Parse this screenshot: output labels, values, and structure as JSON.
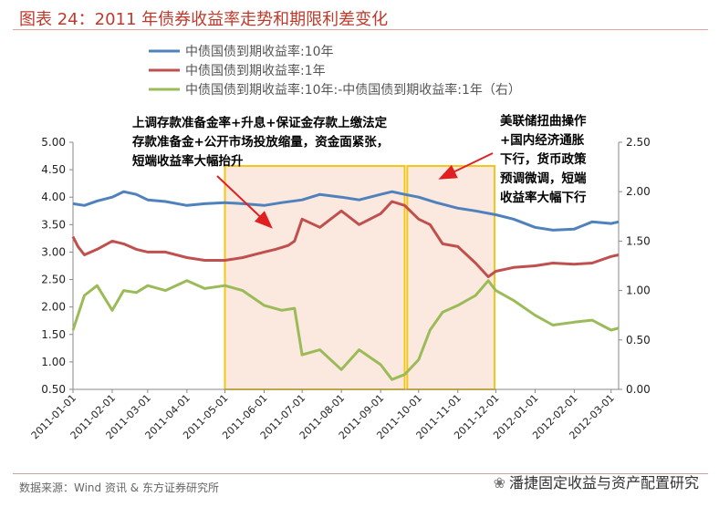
{
  "title": "图表 24：2011 年债券收益率走势和期限利差变化",
  "source": "数据来源：Wind 资讯 & 东方证券研究所",
  "brand": "潘捷固定收益与资产配置研究",
  "colors": {
    "accent": "#c0392b",
    "s10y": "#4f81bd",
    "s1y": "#c0504d",
    "spread": "#9bbb59",
    "box": "#f5c518",
    "box_fill": "#fbe9e0"
  },
  "annotations": [
    "上调存款准备金率+升息+保证金存款上缴法定",
    "存款准备金+公开市场投放缩量，资金面紧张，",
    "短端收益率大幅抬升",
    "美联储扭曲操作",
    "+国内经济通胀",
    "下行，货币政策",
    "预调微调，短端",
    "收益率大幅下行"
  ],
  "chart_data": {
    "type": "line",
    "title": "图表 24：2011 年债券收益率走势和期限利差变化",
    "x_ticks": [
      "2011-01-01",
      "2011-02-01",
      "2011-03-01",
      "2011-04-01",
      "2011-05-01",
      "2011-06-01",
      "2011-07-01",
      "2011-08-01",
      "2011-09-01",
      "2011-10-01",
      "2011-11-01",
      "2011-12-01",
      "2012-01-01",
      "2012-02-01",
      "2012-03-01"
    ],
    "y_left_ticks": [
      "5.00",
      "4.50",
      "4.00",
      "3.50",
      "3.00",
      "2.50",
      "2.00",
      "1.50",
      "1.00",
      "0.50"
    ],
    "y_right_ticks": [
      "2.50",
      "2.00",
      "1.50",
      "1.00",
      "0.50",
      "0.00"
    ],
    "ylim_left": [
      0.5,
      5.0
    ],
    "ylim_right": [
      0.0,
      2.5
    ],
    "legend_position": "top",
    "grid": false,
    "highlight_ranges": [
      [
        "2011-05-01",
        "2011-09-20"
      ],
      [
        "2011-09-22",
        "2011-11-30"
      ]
    ],
    "series": [
      {
        "name": "中债国债到期收益率:10年",
        "axis": "left",
        "x": [
          "2011-01-01",
          "2011-01-10",
          "2011-01-20",
          "2011-02-01",
          "2011-02-10",
          "2011-02-20",
          "2011-03-01",
          "2011-03-15",
          "2011-04-01",
          "2011-04-15",
          "2011-05-01",
          "2011-05-15",
          "2011-06-01",
          "2011-06-15",
          "2011-07-01",
          "2011-07-15",
          "2011-08-01",
          "2011-08-15",
          "2011-09-01",
          "2011-09-10",
          "2011-09-20",
          "2011-10-01",
          "2011-10-15",
          "2011-11-01",
          "2011-11-15",
          "2011-12-01",
          "2011-12-15",
          "2012-01-01",
          "2012-01-15",
          "2012-02-01",
          "2012-02-15",
          "2012-03-01",
          "2012-03-07"
        ],
        "values": [
          3.88,
          3.85,
          3.93,
          4.0,
          4.1,
          4.05,
          3.95,
          3.92,
          3.85,
          3.88,
          3.9,
          3.88,
          3.85,
          3.9,
          3.95,
          4.05,
          4.0,
          3.95,
          4.05,
          4.1,
          4.05,
          4.0,
          3.9,
          3.8,
          3.75,
          3.68,
          3.6,
          3.45,
          3.4,
          3.42,
          3.55,
          3.52,
          3.55
        ]
      },
      {
        "name": "中债国债到期收益率:1年",
        "axis": "left",
        "x": [
          "2011-01-01",
          "2011-01-05",
          "2011-01-10",
          "2011-01-20",
          "2011-02-01",
          "2011-02-10",
          "2011-02-20",
          "2011-03-01",
          "2011-03-15",
          "2011-04-01",
          "2011-04-15",
          "2011-05-01",
          "2011-05-15",
          "2011-06-01",
          "2011-06-10",
          "2011-06-20",
          "2011-06-25",
          "2011-07-01",
          "2011-07-15",
          "2011-08-01",
          "2011-08-15",
          "2011-09-01",
          "2011-09-10",
          "2011-09-20",
          "2011-10-01",
          "2011-10-10",
          "2011-10-20",
          "2011-11-01",
          "2011-11-15",
          "2011-11-25",
          "2011-12-01",
          "2011-12-15",
          "2012-01-01",
          "2012-01-15",
          "2012-02-01",
          "2012-02-15",
          "2012-03-01",
          "2012-03-07"
        ],
        "values": [
          3.28,
          3.1,
          2.95,
          3.05,
          3.2,
          3.15,
          3.05,
          3.0,
          3.0,
          2.9,
          2.85,
          2.85,
          2.9,
          3.0,
          3.05,
          3.12,
          3.2,
          3.6,
          3.45,
          3.75,
          3.5,
          3.7,
          3.92,
          3.85,
          3.6,
          3.5,
          3.15,
          3.1,
          2.8,
          2.55,
          2.65,
          2.72,
          2.75,
          2.8,
          2.78,
          2.8,
          2.92,
          2.95
        ]
      },
      {
        "name": "中债国债到期收益率:10年:-中债国债到期收益率:1年（右）",
        "axis": "right",
        "x": [
          "2011-01-01",
          "2011-01-10",
          "2011-01-20",
          "2011-02-01",
          "2011-02-10",
          "2011-02-20",
          "2011-03-01",
          "2011-03-15",
          "2011-04-01",
          "2011-04-15",
          "2011-05-01",
          "2011-05-15",
          "2011-06-01",
          "2011-06-15",
          "2011-06-25",
          "2011-07-01",
          "2011-07-15",
          "2011-08-01",
          "2011-08-15",
          "2011-09-01",
          "2011-09-10",
          "2011-09-20",
          "2011-10-01",
          "2011-10-10",
          "2011-10-20",
          "2011-11-01",
          "2011-11-15",
          "2011-11-25",
          "2011-12-01",
          "2011-12-15",
          "2012-01-01",
          "2012-01-15",
          "2012-02-01",
          "2012-02-15",
          "2012-03-01",
          "2012-03-07"
        ],
        "values": [
          0.6,
          0.95,
          1.05,
          0.8,
          1.0,
          0.98,
          1.05,
          1.0,
          1.1,
          1.02,
          1.05,
          1.0,
          0.85,
          0.8,
          0.82,
          0.35,
          0.4,
          0.2,
          0.4,
          0.25,
          0.1,
          0.15,
          0.3,
          0.6,
          0.78,
          0.85,
          0.95,
          1.1,
          1.0,
          0.9,
          0.75,
          0.65,
          0.68,
          0.7,
          0.6,
          0.62
        ]
      }
    ]
  }
}
